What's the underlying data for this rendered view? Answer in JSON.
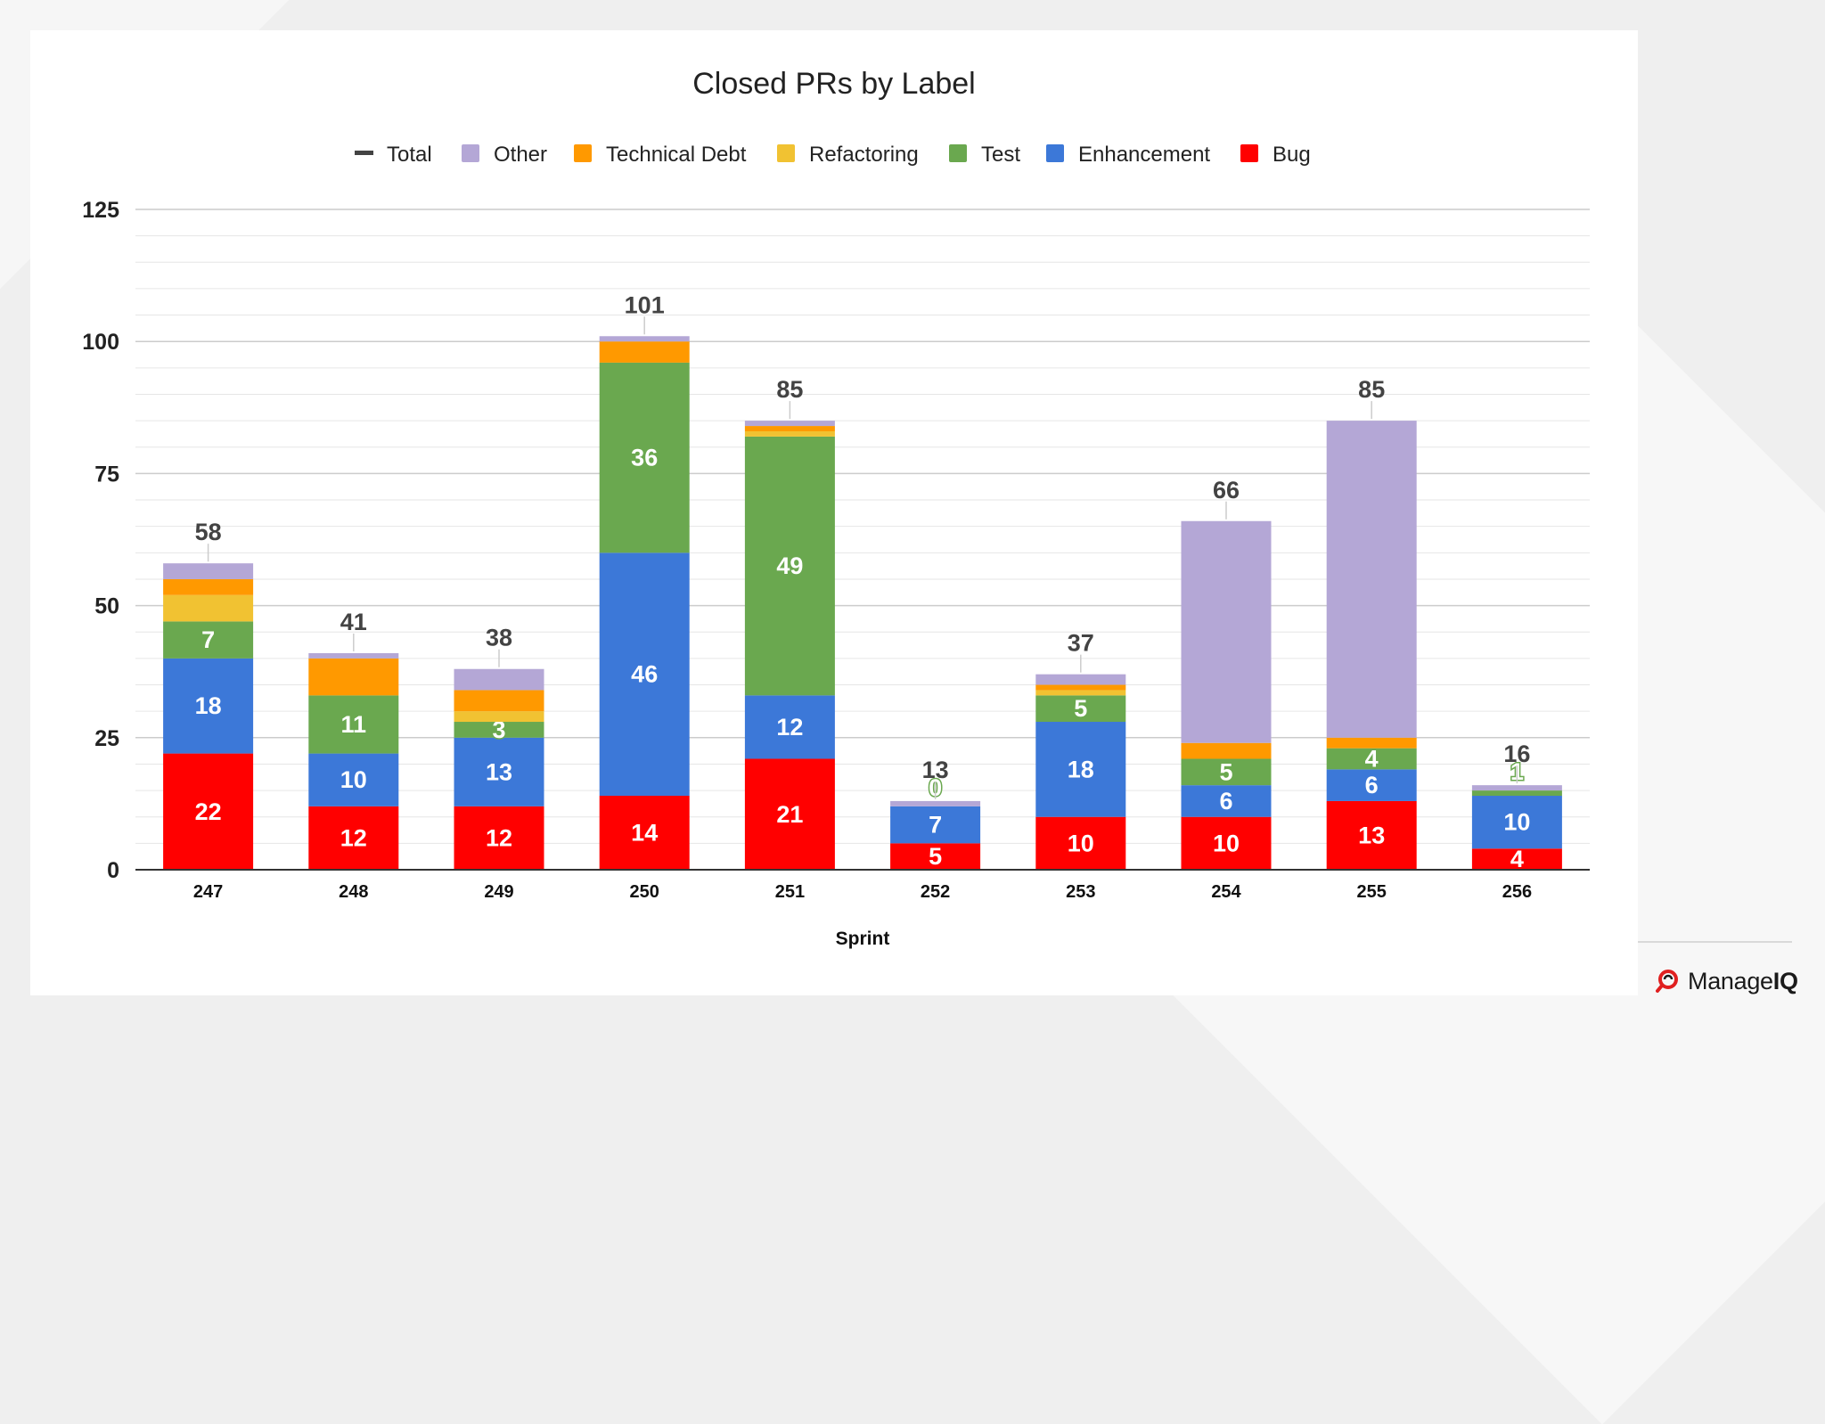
{
  "chart_data": {
    "type": "bar",
    "stacked": true,
    "title": "Closed PRs by Label",
    "xlabel": "Sprint",
    "ylabel": "",
    "ylim": [
      0,
      125
    ],
    "yticks": [
      0,
      25,
      50,
      75,
      100,
      125
    ],
    "categories": [
      "247",
      "248",
      "249",
      "250",
      "251",
      "252",
      "253",
      "254",
      "255",
      "256"
    ],
    "legend_position": "top",
    "legend": [
      "Total",
      "Other",
      "Technical Debt",
      "Refactoring",
      "Test",
      "Enhancement",
      "Bug"
    ],
    "series": [
      {
        "name": "Bug",
        "color": "#ff0000",
        "values": [
          22,
          12,
          12,
          14,
          21,
          5,
          10,
          10,
          13,
          4
        ],
        "labels": [
          "22",
          "12",
          "12",
          "14",
          "21",
          "5",
          "10",
          "10",
          "13",
          "4"
        ]
      },
      {
        "name": "Enhancement",
        "color": "#3c78d8",
        "values": [
          18,
          10,
          13,
          46,
          12,
          7,
          18,
          6,
          6,
          10
        ],
        "labels": [
          "18",
          "10",
          "13",
          "46",
          "12",
          "7",
          "18",
          "6",
          "6",
          "10"
        ]
      },
      {
        "name": "Test",
        "color": "#6aa84f",
        "values": [
          7,
          11,
          3,
          36,
          49,
          0,
          5,
          5,
          4,
          1
        ],
        "labels": [
          "7",
          "11",
          "3",
          "36",
          "49",
          "0",
          "5",
          "5",
          "4",
          "1"
        ]
      },
      {
        "name": "Refactoring",
        "color": "#f1c232",
        "values": [
          5,
          0,
          2,
          0,
          1,
          0,
          1,
          0,
          0,
          0
        ]
      },
      {
        "name": "Technical Debt",
        "color": "#ff9900",
        "values": [
          3,
          7,
          4,
          4,
          1,
          0,
          1,
          3,
          2,
          0
        ]
      },
      {
        "name": "Other",
        "color": "#b4a7d6",
        "values": [
          3,
          1,
          4,
          1,
          1,
          1,
          2,
          42,
          60,
          1
        ]
      },
      {
        "name": "Total",
        "color": "#434343",
        "values": [
          58,
          41,
          38,
          101,
          85,
          13,
          37,
          66,
          85,
          16
        ],
        "labels": [
          "58",
          "41",
          "38",
          "101",
          "85",
          "13",
          "37",
          "66",
          "85",
          "16"
        ]
      }
    ]
  },
  "brand": {
    "prefix": "Manage",
    "suffix": "IQ"
  }
}
